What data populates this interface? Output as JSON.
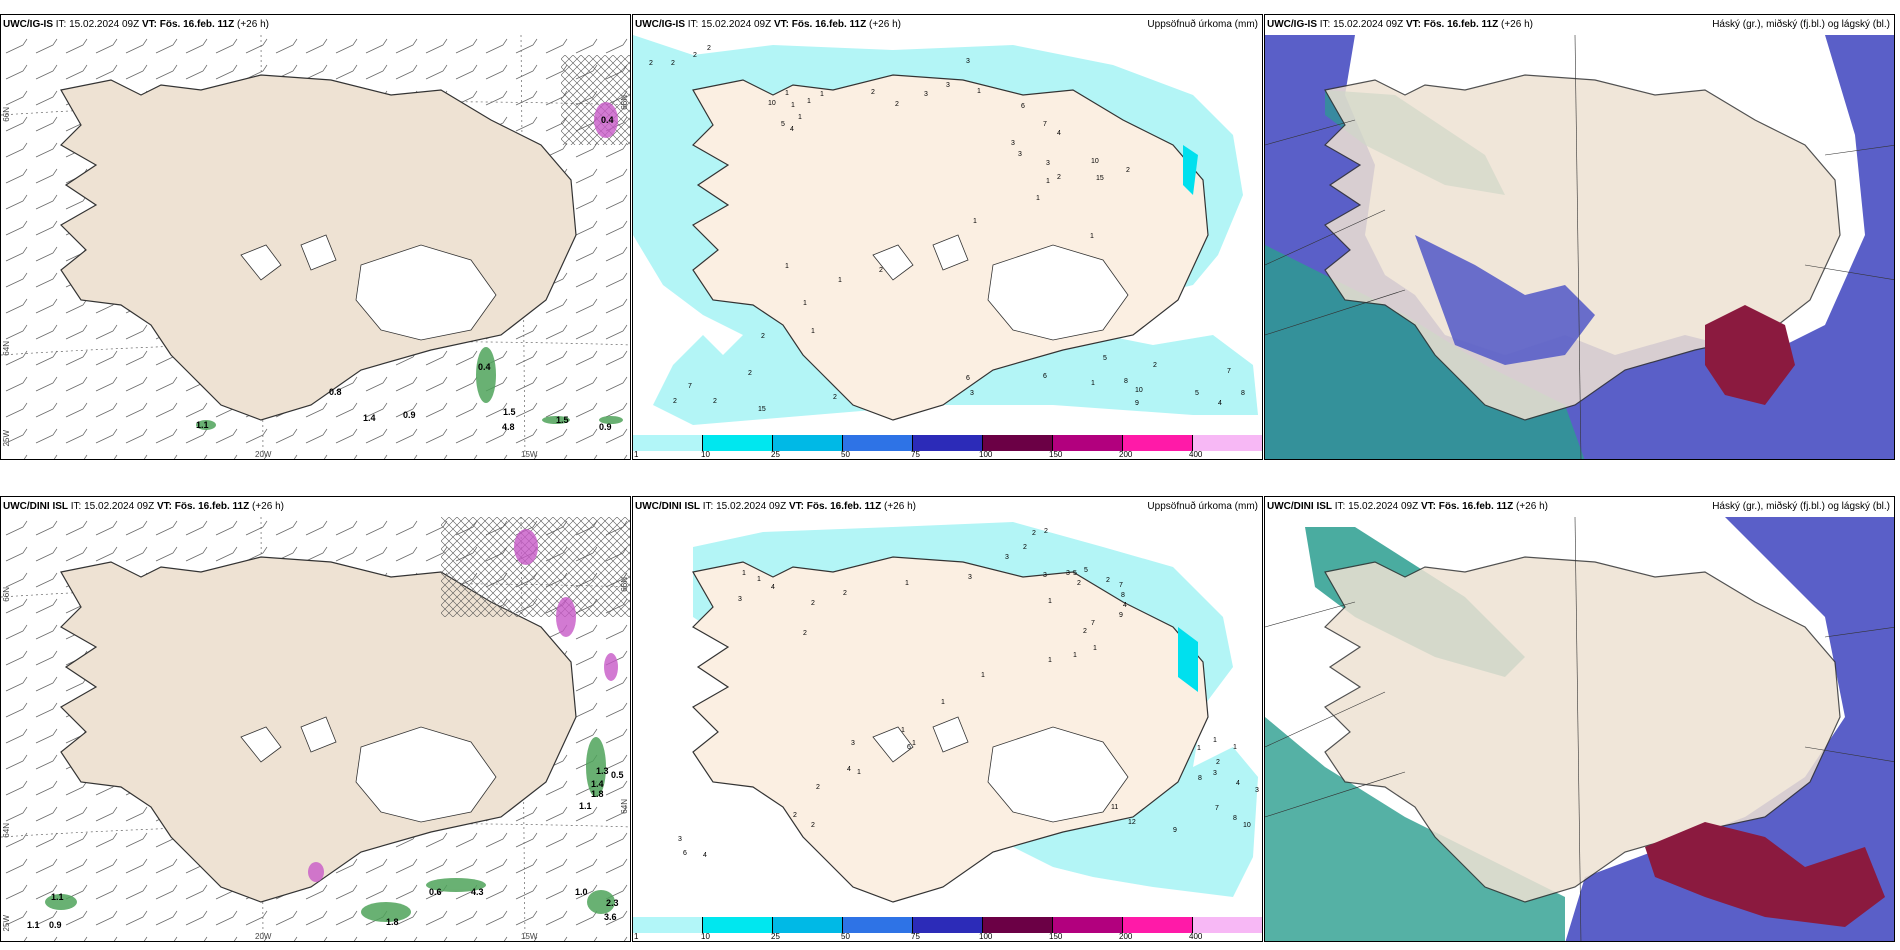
{
  "panels": [
    {
      "id": "p1",
      "model": "UWC/IG-IS",
      "it_label": "IT:",
      "it_value": "15.02.2024 09Z",
      "vt_label": "VT:",
      "vt_value": "Fös. 16.feb. 11Z",
      "lead": "(+26 h)",
      "right_title": "",
      "numbers": [
        "0.4",
        "1.5",
        "4.8",
        "1.5",
        "0.9",
        "0.9",
        "1.1",
        "1.4",
        "0.4",
        "0.8"
      ],
      "lon_labels": [
        "20W",
        "15W"
      ],
      "lat_labels": [
        "66N",
        "64N",
        "25W",
        "66N"
      ]
    },
    {
      "id": "p2",
      "model": "UWC/IG-IS",
      "it_label": "IT:",
      "it_value": "15.02.2024 09Z",
      "vt_label": "VT:",
      "vt_value": "Fös. 16.feb. 11Z",
      "lead": "(+26 h)",
      "right_title": "Uppsöfnuð úrkoma (mm)",
      "numbers": [
        "2",
        "2",
        "2",
        "2",
        "10",
        "1",
        "1",
        "1",
        "5",
        "4",
        "1",
        "1",
        "2",
        "2",
        "3",
        "3",
        "3",
        "1",
        "6",
        "7",
        "4",
        "3",
        "3",
        "3",
        "1",
        "2",
        "10",
        "15",
        "2",
        "1",
        "1",
        "1",
        "2",
        "1",
        "1",
        "1",
        "1",
        "2",
        "2",
        "2",
        "7",
        "2",
        "15",
        "2",
        "6",
        "3",
        "6",
        "1",
        "5",
        "2",
        "8",
        "10",
        "9",
        "5",
        "4",
        "8",
        "7"
      ],
      "colorbar": {
        "ticks": [
          "1",
          "10",
          "25",
          "50",
          "75",
          "100",
          "150",
          "200",
          "400"
        ],
        "colors": [
          "#b2f6f8",
          "#00e7ef",
          "#00b9e6",
          "#2e73e6",
          "#2c2bb8",
          "#6b0045",
          "#b2007e",
          "#ff1aa8",
          "#f7b8f5"
        ]
      }
    },
    {
      "id": "p3",
      "model": "UWC/IG-IS",
      "it_label": "IT:",
      "it_value": "15.02.2024 09Z",
      "vt_label": "VT:",
      "vt_value": "Fös. 16.feb. 11Z",
      "lead": "(+26 h)",
      "right_title": "Háský (gr.), miðský (fj.bl.) og lágský (bl.)"
    },
    {
      "id": "p4",
      "model": "UWC/DINI ISL",
      "it_label": "IT:",
      "it_value": "15.02.2024 09Z",
      "vt_label": "VT:",
      "vt_value": "Fös. 16.feb. 11Z",
      "lead": "(+26 h)",
      "right_title": "",
      "numbers": [
        "1.3",
        "0.5",
        "1.4",
        "1.8",
        "1.1",
        "1.1",
        "1.1",
        "0.9",
        "0.6",
        "4.3",
        "1.0",
        "2.3",
        "3.6",
        "1.8"
      ],
      "lon_labels": [
        "20W",
        "15W"
      ],
      "lat_labels": [
        "66N",
        "64N",
        "25W",
        "66N",
        "64N"
      ]
    },
    {
      "id": "p5",
      "model": "UWC/DINI ISL",
      "it_label": "IT:",
      "it_value": "15.02.2024 09Z",
      "vt_label": "VT:",
      "vt_value": "Fös. 16.feb. 11Z",
      "lead": "(+26 h)",
      "right_title": "Uppsöfnuð úrkoma (mm)",
      "numbers": [
        "2",
        "2",
        "3",
        "2",
        "3",
        "3",
        "2",
        "2",
        "5",
        "5",
        "7",
        "8",
        "4",
        "9",
        "3",
        "1",
        "2",
        "3",
        "1",
        "1",
        "4",
        "2",
        "2",
        "1",
        "2",
        "1",
        "1",
        "7",
        "1",
        "1",
        "1",
        "1",
        "1",
        "6",
        "2",
        "3",
        "4",
        "1",
        "3",
        "6",
        "4",
        "2",
        "2",
        "11",
        "12",
        "9",
        "7",
        "8",
        "10",
        "8",
        "1",
        "3",
        "1",
        "2",
        "1",
        "4",
        "3"
      ],
      "colorbar": {
        "ticks": [
          "1",
          "10",
          "25",
          "50",
          "75",
          "100",
          "150",
          "200",
          "400"
        ],
        "colors": [
          "#b2f6f8",
          "#00e7ef",
          "#00b9e6",
          "#2e73e6",
          "#2c2bb8",
          "#6b0045",
          "#b2007e",
          "#ff1aa8",
          "#f7b8f5"
        ]
      }
    },
    {
      "id": "p6",
      "model": "UWC/DINI ISL",
      "it_label": "IT:",
      "it_value": "15.02.2024 09Z",
      "vt_label": "VT:",
      "vt_value": "Fös. 16.feb. 11Z",
      "lead": "(+26 h)",
      "right_title": "Háský (gr.), miðský (fj.bl.) og lágský (bl.)"
    }
  ]
}
